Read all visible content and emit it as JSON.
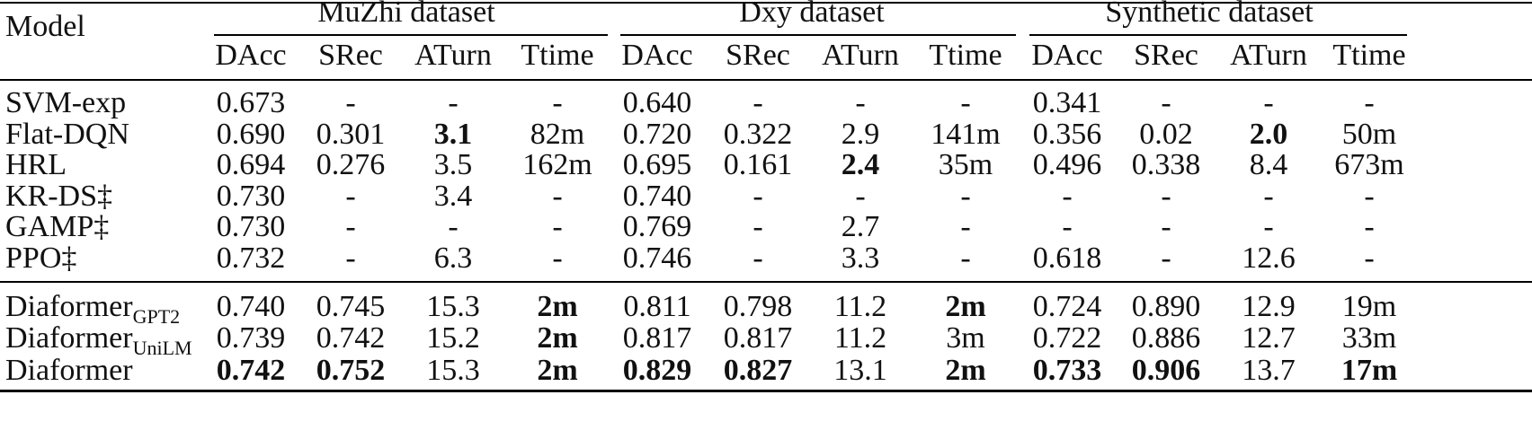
{
  "table": {
    "model_header": "Model",
    "groups": [
      {
        "label": "MuZhi dataset"
      },
      {
        "label": "Dxy dataset"
      },
      {
        "label": "Synthetic dataset"
      }
    ],
    "metrics": [
      "DAcc",
      "SRec",
      "ATurn",
      "Ttime",
      "DAcc",
      "SRec",
      "ATurn",
      "Ttime",
      "DAcc",
      "SRec",
      "ATurn",
      "Ttime"
    ],
    "rows": [
      {
        "model": "SVM-exp",
        "sub": "",
        "cells": [
          "0.673",
          "-",
          "-",
          "-",
          "0.640",
          "-",
          "-",
          "-",
          "0.341",
          "-",
          "-",
          "-"
        ],
        "bold": []
      },
      {
        "model": "Flat-DQN",
        "sub": "",
        "cells": [
          "0.690",
          "0.301",
          "3.1",
          "82m",
          "0.720",
          "0.322",
          "2.9",
          "141m",
          "0.356",
          "0.02",
          "2.0",
          "50m"
        ],
        "bold": [
          2,
          10
        ]
      },
      {
        "model": "HRL",
        "sub": "",
        "cells": [
          "0.694",
          "0.276",
          "3.5",
          "162m",
          "0.695",
          "0.161",
          "2.4",
          "35m",
          "0.496",
          "0.338",
          "8.4",
          "673m"
        ],
        "bold": [
          6
        ]
      },
      {
        "model": "KR-DS‡",
        "sub": "",
        "cells": [
          "0.730",
          "-",
          "3.4",
          "-",
          "0.740",
          "-",
          "-",
          "-",
          "-",
          "-",
          "-",
          "-"
        ],
        "bold": []
      },
      {
        "model": "GAMP‡",
        "sub": "",
        "cells": [
          "0.730",
          "-",
          "-",
          "-",
          "0.769",
          "-",
          "2.7",
          "-",
          "-",
          "-",
          "-",
          "-"
        ],
        "bold": []
      },
      {
        "model": "PPO‡",
        "sub": "",
        "cells": [
          "0.732",
          "-",
          "6.3",
          "-",
          "0.746",
          "-",
          "3.3",
          "-",
          "0.618",
          "-",
          "12.6",
          "-"
        ],
        "bold": []
      },
      {
        "model": "Diaformer",
        "sub": "GPT2",
        "cells": [
          "0.740",
          "0.745",
          "15.3",
          "2m",
          "0.811",
          "0.798",
          "11.2",
          "2m",
          "0.724",
          "0.890",
          "12.9",
          "19m"
        ],
        "bold": [
          3,
          7
        ]
      },
      {
        "model": "Diaformer",
        "sub": "UniLM",
        "cells": [
          "0.739",
          "0.742",
          "15.2",
          "2m",
          "0.817",
          "0.817",
          "11.2",
          "3m",
          "0.722",
          "0.886",
          "12.7",
          "33m"
        ],
        "bold": [
          3
        ]
      },
      {
        "model": "Diaformer",
        "sub": "",
        "cells": [
          "0.742",
          "0.752",
          "15.3",
          "2m",
          "0.829",
          "0.827",
          "13.1",
          "2m",
          "0.733",
          "0.906",
          "13.7",
          "17m"
        ],
        "bold": [
          0,
          1,
          3,
          4,
          5,
          7,
          8,
          9,
          11
        ]
      }
    ]
  }
}
